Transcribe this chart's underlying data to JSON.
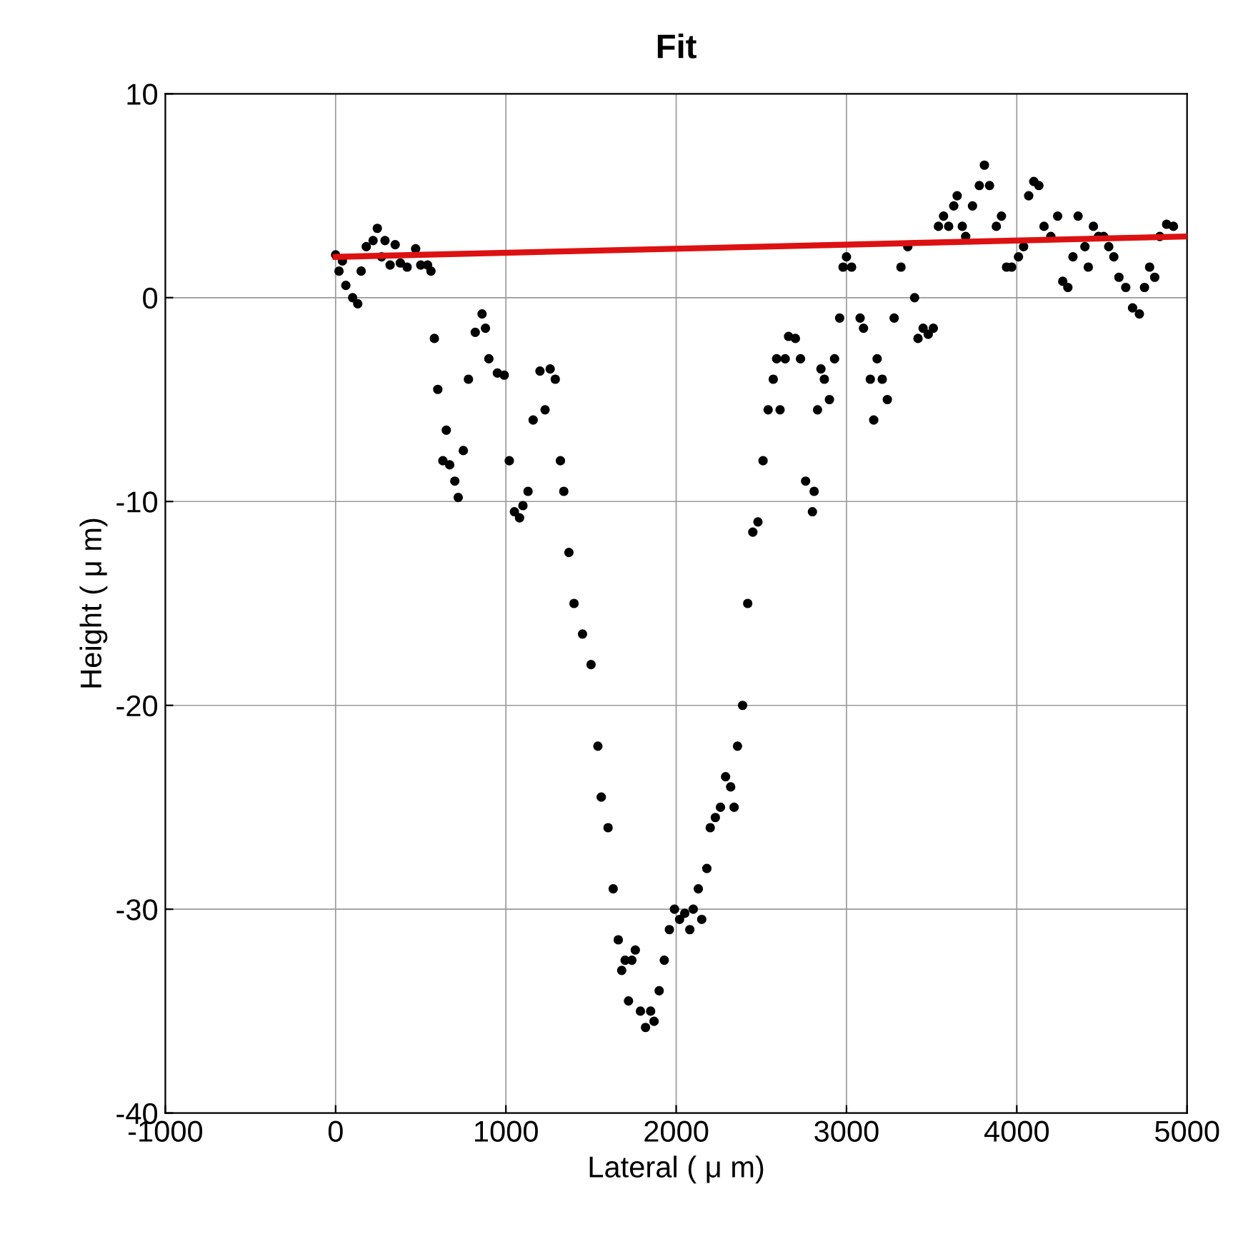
{
  "chart_data": {
    "type": "scatter",
    "title": "Fit",
    "xlabel": "Lateral ( μ m)",
    "ylabel": "Height ( μ m)",
    "xlim": [
      -1000,
      5000
    ],
    "xticks": [
      -1000,
      0,
      1000,
      2000,
      3000,
      4000,
      5000
    ],
    "ylim": [
      -40,
      10
    ],
    "yticks": [
      -40,
      -30,
      -20,
      -10,
      0,
      10
    ],
    "grid": true,
    "series": [
      {
        "marker": "circle",
        "color": "#000000",
        "x": [
          0,
          20,
          40,
          60,
          100,
          130,
          150,
          180,
          220,
          245,
          270,
          290,
          320,
          350,
          380,
          420,
          470,
          500,
          540,
          560,
          580,
          600,
          630,
          650,
          670,
          700,
          720,
          750,
          780,
          820,
          860,
          880,
          900,
          950,
          990,
          1020,
          1050,
          1080,
          1100,
          1130,
          1160,
          1200,
          1230,
          1260,
          1290,
          1320,
          1340,
          1370,
          1400,
          1450,
          1500,
          1540,
          1560,
          1600,
          1630,
          1660,
          1680,
          1700,
          1720,
          1740,
          1760,
          1790,
          1820,
          1850,
          1870,
          1900,
          1930,
          1960,
          1990,
          2020,
          2050,
          2080,
          2100,
          2130,
          2150,
          2180,
          2200,
          2230,
          2260,
          2290,
          2320,
          2340,
          2360,
          2390,
          2420,
          2450,
          2480,
          2510,
          2540,
          2570,
          2590,
          2610,
          2640,
          2660,
          2700,
          2730,
          2760,
          2800,
          2810,
          2830,
          2850,
          2870,
          2900,
          2930,
          2960,
          2980,
          3000,
          3030,
          3080,
          3100,
          3140,
          3160,
          3180,
          3210,
          3240,
          3280,
          3320,
          3360,
          3400,
          3420,
          3450,
          3480,
          3510,
          3540,
          3570,
          3600,
          3630,
          3650,
          3680,
          3700,
          3740,
          3780,
          3810,
          3840,
          3880,
          3910,
          3940,
          3970,
          4010,
          4040,
          4070,
          4100,
          4130,
          4160,
          4200,
          4240,
          4270,
          4300,
          4330,
          4360,
          4400,
          4420,
          4450,
          4480,
          4510,
          4540,
          4570,
          4600,
          4640,
          4680,
          4720,
          4750,
          4780,
          4810,
          4840,
          4880,
          4920
        ],
        "values": [
          2.1,
          1.3,
          1.8,
          0.6,
          0,
          -0.3,
          1.3,
          2.5,
          2.8,
          3.4,
          2.0,
          2.8,
          1.6,
          2.6,
          1.7,
          1.5,
          2.4,
          1.6,
          1.6,
          1.3,
          -2,
          -4.5,
          -8,
          -6.5,
          -8.2,
          -9,
          -9.8,
          -7.5,
          -4,
          -1.7,
          -0.8,
          -1.5,
          -3,
          -3.7,
          -3.8,
          -8,
          -10.5,
          -10.8,
          -10.2,
          -9.5,
          -6,
          -3.6,
          -5.5,
          -3.5,
          -4,
          -8,
          -9.5,
          -12.5,
          -15,
          -16.5,
          -18,
          -22,
          -24.5,
          -26,
          -29,
          -31.5,
          -33,
          -32.5,
          -34.5,
          -32.5,
          -32,
          -35,
          -35.8,
          -35,
          -35.5,
          -34,
          -32.5,
          -31,
          -30,
          -30.5,
          -30.2,
          -31,
          -30,
          -29,
          -30.5,
          -28,
          -26,
          -25.5,
          -25,
          -23.5,
          -24,
          -25,
          -22,
          -20,
          -15,
          -11.5,
          -11,
          -8,
          -5.5,
          -4,
          -3,
          -5.5,
          -3,
          -1.9,
          -2,
          -3,
          -9,
          -10.5,
          -9.5,
          -5.5,
          -3.5,
          -4,
          -5,
          -3,
          -1,
          1.5,
          2,
          1.5,
          -1,
          -1.5,
          -4,
          -6,
          -3,
          -4,
          -5,
          -1,
          1.5,
          2.5,
          0,
          -2,
          -1.5,
          -1.8,
          -1.5,
          3.5,
          4.0,
          3.5,
          4.5,
          5.0,
          3.5,
          3.0,
          4.5,
          5.5,
          6.5,
          5.5,
          3.5,
          4.0,
          1.5,
          1.5,
          2.0,
          2.5,
          5.0,
          5.7,
          5.5,
          3.5,
          3.0,
          4.0,
          0.8,
          0.5,
          2.0,
          4.0,
          2.5,
          1.5,
          3.5,
          3.0,
          3.0,
          2.5,
          2.0,
          1.0,
          0.5,
          -0.5,
          -0.8,
          0.5,
          1.5,
          1.0,
          3.0,
          3.6,
          3.5
        ]
      },
      {
        "type": "line",
        "marker": "none",
        "color": "#dd1111",
        "x": [
          0,
          5000
        ],
        "values": [
          2.0,
          3.0
        ]
      }
    ]
  }
}
